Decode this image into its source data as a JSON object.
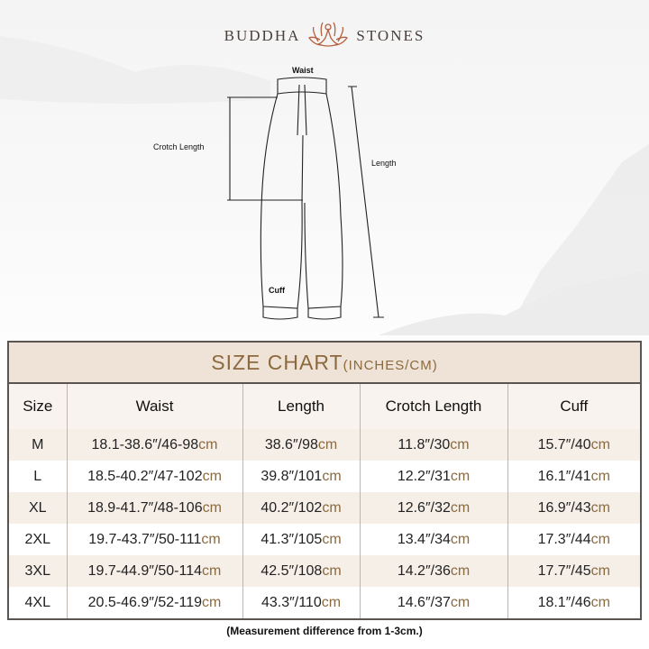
{
  "brand": {
    "left": "BUDDHA",
    "right": "STONES",
    "logo_icon": "lotus-meditation-icon"
  },
  "diagram": {
    "waist": "Waist",
    "crotch_length": "Crotch Length",
    "length": "Length",
    "cuff": "Cuff"
  },
  "table": {
    "title": "SIZE CHART",
    "title_unit": "(INCHES/CM)",
    "headers": [
      "Size",
      "Waist",
      "Length",
      "Crotch Length",
      "Cuff"
    ],
    "unit_suffix": "cm",
    "rows": [
      [
        "M",
        "18.1-38.6″/46-98",
        "38.6″/98",
        "11.8″/30",
        "15.7″/40"
      ],
      [
        "L",
        "18.5-40.2″/47-102",
        "39.8″/101",
        "12.2″/31",
        "16.1″/41"
      ],
      [
        "XL",
        "18.9-41.7″/48-106",
        "40.2″/102",
        "12.6″/32",
        "16.9″/43"
      ],
      [
        "2XL",
        "19.7-43.7″/50-111",
        "41.3″/105",
        "13.4″/34",
        "17.3″/44"
      ],
      [
        "3XL",
        "19.7-44.9″/50-114",
        "42.5″/108",
        "14.2″/36",
        "17.7″/45"
      ],
      [
        "4XL",
        "20.5-46.9″/52-119",
        "43.3″/110",
        "14.6″/37",
        "18.1″/46"
      ]
    ],
    "accent_color": "#8b6a3e"
  },
  "note": "(Measurement difference from 1-3cm.)"
}
